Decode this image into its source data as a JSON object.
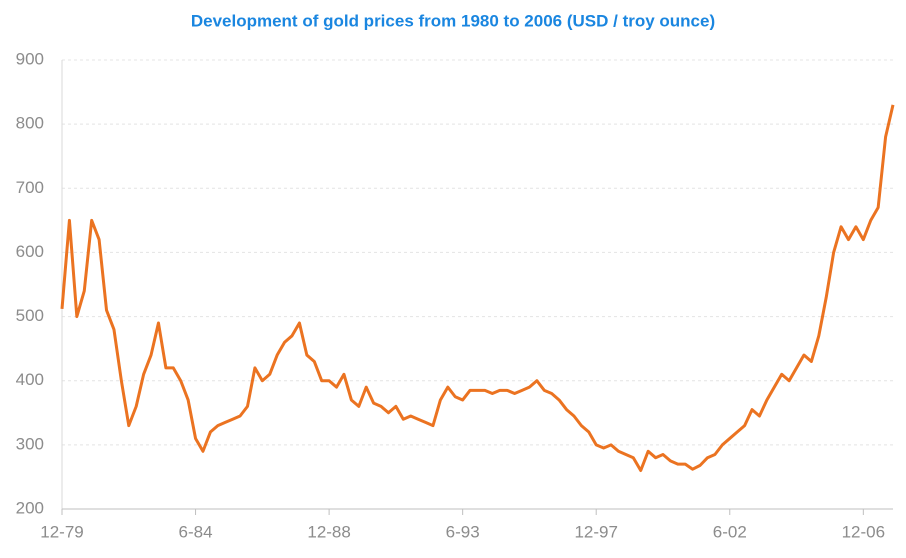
{
  "chart_data": {
    "type": "line",
    "title": "Development of gold prices from 1980 to 2006 (USD / troy ounce)",
    "categories": [
      "12-79",
      null,
      null,
      null,
      null,
      null,
      null,
      null,
      null,
      null,
      null,
      null,
      null,
      null,
      null,
      null,
      null,
      null,
      "6-84",
      null,
      null,
      null,
      null,
      null,
      null,
      null,
      null,
      null,
      null,
      null,
      null,
      null,
      null,
      null,
      null,
      null,
      "12-88",
      null,
      null,
      null,
      null,
      null,
      null,
      null,
      null,
      null,
      null,
      null,
      null,
      null,
      null,
      null,
      null,
      null,
      "6-93",
      null,
      null,
      null,
      null,
      null,
      null,
      null,
      null,
      null,
      null,
      null,
      null,
      null,
      null,
      null,
      null,
      null,
      "12-97",
      null,
      null,
      null,
      null,
      null,
      null,
      null,
      null,
      null,
      null,
      null,
      null,
      null,
      null,
      null,
      null,
      null,
      "6-02",
      null,
      null,
      null,
      null,
      null,
      null,
      null,
      null,
      null,
      null,
      null,
      null,
      null,
      null,
      null,
      null,
      null,
      "12-06",
      null,
      null,
      null,
      null
    ],
    "series": [
      {
        "name": "Gold price",
        "color": "#eb7321",
        "values": [
          512,
          650,
          500,
          540,
          650,
          620,
          510,
          480,
          400,
          330,
          360,
          410,
          440,
          490,
          420,
          420,
          400,
          370,
          310,
          290,
          320,
          330,
          335,
          340,
          345,
          360,
          420,
          400,
          410,
          440,
          460,
          470,
          490,
          440,
          430,
          400,
          400,
          390,
          410,
          370,
          360,
          390,
          365,
          360,
          350,
          360,
          340,
          345,
          340,
          335,
          330,
          370,
          390,
          375,
          370,
          385,
          385,
          385,
          380,
          385,
          385,
          380,
          385,
          390,
          400,
          385,
          380,
          370,
          355,
          345,
          330,
          320,
          300,
          295,
          300,
          290,
          285,
          280,
          260,
          290,
          280,
          285,
          275,
          270,
          270,
          262,
          268,
          280,
          285,
          300,
          310,
          320,
          330,
          355,
          345,
          370,
          390,
          410,
          400,
          420,
          440,
          430,
          470,
          530,
          600,
          640,
          620,
          640,
          620,
          650,
          670,
          780,
          830
        ]
      }
    ],
    "ylim": [
      200,
      900
    ],
    "yticks": [
      200,
      300,
      400,
      500,
      600,
      700,
      800,
      900
    ],
    "grid": true
  }
}
